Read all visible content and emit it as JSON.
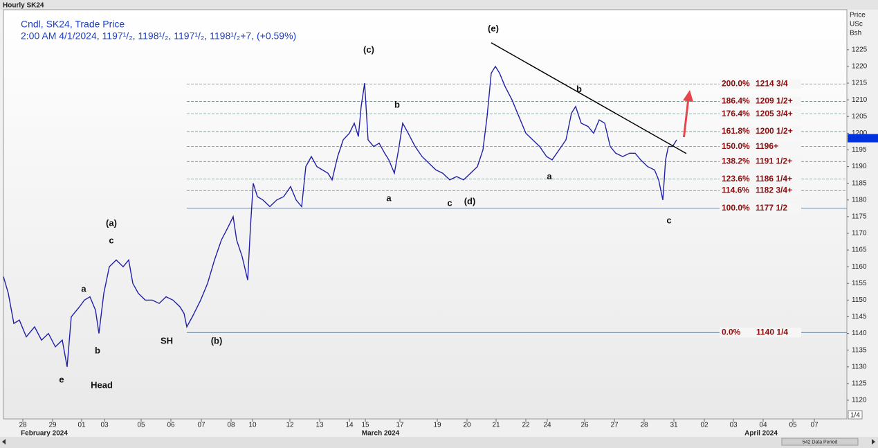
{
  "chart_data": {
    "type": "line",
    "header": "Hourly SK24",
    "legend_title": "Cndl, SK24, Trade Price",
    "legend_detail": "2:00 AM 4/1/2024, 1197¹/₂, 1198¹/₂, 1197¹/₂, 1198¹/₂+7, (+0.59%)",
    "y_axis_label": [
      "Price",
      "USc",
      "Bsh"
    ],
    "series": [
      {
        "name": "SK24",
        "color": "#1f1fa8",
        "x": [
          1,
          2.4,
          4,
          5.6,
          7.6,
          10,
          12,
          14,
          16,
          18,
          19.4,
          20.6,
          23,
          24.4,
          26,
          27.6,
          28.6,
          30,
          31.6,
          33.6,
          35.6,
          37.2,
          38.4,
          40,
          42,
          44,
          46,
          48,
          50,
          52,
          53.2,
          54,
          55.6,
          58,
          60,
          62,
          64,
          66,
          67.4,
          68.4,
          70,
          71.6,
          72.4,
          73.2,
          74.4,
          76,
          78,
          80,
          82,
          84,
          85.6,
          87.2,
          88.4,
          90,
          91.6,
          93.2,
          94.8,
          96,
          97.6,
          99.2,
          101,
          102.4,
          103.6,
          104.4,
          105.4,
          106.4,
          108,
          109.6,
          111.2,
          112.4,
          114,
          115.2,
          116.4,
          118,
          120,
          122,
          124,
          126,
          128,
          130,
          132,
          134,
          136,
          138,
          139.6,
          140.8,
          142,
          143.2,
          144.4,
          146,
          148,
          150,
          152,
          154,
          156,
          158,
          159.6,
          161.6,
          163.6,
          165.2,
          166.4,
          168,
          170,
          171.6,
          173.2,
          174.8,
          176.4,
          178,
          180,
          182,
          183.6,
          185.2,
          187.2,
          189.2,
          190.4,
          191.6,
          192.4,
          193.2,
          194.4,
          195.6
        ],
        "values": [
          1157,
          1152,
          1143,
          1144,
          1139,
          1142,
          1138,
          1140,
          1136,
          1138,
          1130,
          1145,
          1148,
          1150,
          1151,
          1147,
          1140,
          1152,
          1160,
          1162,
          1160,
          1162,
          1155,
          1152,
          1150,
          1150,
          1149,
          1151,
          1150,
          1148,
          1146,
          1142,
          1145,
          1150,
          1155,
          1162,
          1168,
          1172,
          1175,
          1168,
          1163,
          1156,
          1172,
          1185,
          1181,
          1180,
          1178,
          1180,
          1181,
          1184,
          1180,
          1178,
          1190,
          1193,
          1190,
          1189,
          1188,
          1186,
          1193,
          1198,
          1200,
          1203,
          1199,
          1208,
          1215,
          1198,
          1196,
          1197,
          1194,
          1192,
          1188,
          1195,
          1203,
          1200,
          1196,
          1193,
          1191,
          1189,
          1188,
          1186,
          1187,
          1186,
          1188,
          1190,
          1195,
          1205,
          1218,
          1220,
          1218,
          1214,
          1210,
          1205,
          1200,
          1198,
          1196,
          1193,
          1192,
          1195,
          1198,
          1206,
          1208,
          1203,
          1202,
          1200,
          1204,
          1203,
          1196,
          1194,
          1193,
          1194,
          1194,
          1192,
          1190,
          1189,
          1186,
          1180,
          1192,
          1196,
          1196,
          1198
        ]
      }
    ],
    "last_price": 1198.5,
    "ylim": [
      1114.4,
      1237
    ],
    "yticks": [
      1120,
      1125,
      1130,
      1135,
      1140,
      1145,
      1150,
      1155,
      1160,
      1165,
      1170,
      1175,
      1180,
      1185,
      1190,
      1195,
      1200,
      1205,
      1210,
      1215,
      1220,
      1225
    ],
    "xlim": [
      1,
      244.8
    ],
    "xticks": [
      {
        "value": 6.6,
        "label": "28"
      },
      {
        "value": 15.2,
        "label": "29"
      },
      {
        "value": 23.6,
        "label": "01"
      },
      {
        "value": 30.2,
        "label": "03"
      },
      {
        "value": 40.8,
        "label": "05"
      },
      {
        "value": 49.4,
        "label": "06"
      },
      {
        "value": 58.2,
        "label": "07"
      },
      {
        "value": 66.8,
        "label": "08"
      },
      {
        "value": 73,
        "label": "10"
      },
      {
        "value": 83.8,
        "label": "12"
      },
      {
        "value": 92.4,
        "label": "13"
      },
      {
        "value": 101,
        "label": "14"
      },
      {
        "value": 105.6,
        "label": "15"
      },
      {
        "value": 115.6,
        "label": "17"
      },
      {
        "value": 126.4,
        "label": "19"
      },
      {
        "value": 135,
        "label": "20"
      },
      {
        "value": 143.4,
        "label": "21"
      },
      {
        "value": 152,
        "label": "22"
      },
      {
        "value": 158.2,
        "label": "24"
      },
      {
        "value": 169,
        "label": "26"
      },
      {
        "value": 177.6,
        "label": "27"
      },
      {
        "value": 186.2,
        "label": "28"
      },
      {
        "value": 194.8,
        "label": "31"
      },
      {
        "value": 203.6,
        "label": "02"
      },
      {
        "value": 212,
        "label": "03"
      },
      {
        "value": 220.6,
        "label": "04"
      },
      {
        "value": 229.2,
        "label": "05"
      },
      {
        "value": 235.4,
        "label": "07"
      }
    ],
    "months": [
      {
        "value": 12.8,
        "label": "February 2024"
      },
      {
        "value": 110,
        "label": "March 2024"
      },
      {
        "value": 220,
        "label": "April 2024"
      }
    ],
    "fib_start_x": 54,
    "fib_levels": [
      {
        "pct": "200.0%",
        "price": "1214 3/4",
        "value": 1214.75
      },
      {
        "pct": "186.4%",
        "price": "1209 1/2+",
        "value": 1209.5
      },
      {
        "pct": "176.4%",
        "price": "1205 3/4+",
        "value": 1205.75
      },
      {
        "pct": "161.8%",
        "price": "1200 1/2+",
        "value": 1200.5
      },
      {
        "pct": "150.0%",
        "price": "1196+",
        "value": 1196
      },
      {
        "pct": "138.2%",
        "price": "1191 1/2+",
        "value": 1191.5
      },
      {
        "pct": "123.6%",
        "price": "1186 1/4+",
        "value": 1186.25
      },
      {
        "pct": "114.6%",
        "price": "1182 3/4+",
        "value": 1182.75
      },
      {
        "pct": "100.0%",
        "price": "1177 1/2",
        "value": 1177.5
      },
      {
        "pct": "0.0%",
        "price": "1140 1/4",
        "value": 1140.25
      }
    ],
    "trendline": {
      "x": [
        142,
        198.4
      ],
      "values": [
        1227.1,
        1193.9
      ]
    },
    "annotations": [
      {
        "text": "(e)",
        "x": 142.6,
        "y": 1231.2
      },
      {
        "text": "(c)",
        "x": 106.6,
        "y": 1224.8
      },
      {
        "text": "b",
        "x": 114.8,
        "y": 1208.4
      },
      {
        "text": "b",
        "x": 167.4,
        "y": 1213
      },
      {
        "text": "a",
        "x": 112.4,
        "y": 1180.4
      },
      {
        "text": "c",
        "x": 130,
        "y": 1178.9
      },
      {
        "text": "(d)",
        "x": 135.8,
        "y": 1179.4
      },
      {
        "text": "a",
        "x": 158.8,
        "y": 1186.9
      },
      {
        "text": "c",
        "x": 193.4,
        "y": 1173.7
      },
      {
        "text": "(a)",
        "x": 32.2,
        "y": 1172.9
      },
      {
        "text": "c",
        "x": 32.2,
        "y": 1167.7
      },
      {
        "text": "a",
        "x": 24.2,
        "y": 1153.2
      },
      {
        "text": "b",
        "x": 28.2,
        "y": 1134.7
      },
      {
        "text": "e",
        "x": 17.8,
        "y": 1126
      },
      {
        "text": "Head",
        "x": 29.4,
        "y": 1124.3
      },
      {
        "text": "SH",
        "x": 48.2,
        "y": 1137.6
      },
      {
        "text": "(b)",
        "x": 62.6,
        "y": 1137.6
      }
    ],
    "page_indicator": "1/4",
    "scroll_label": "542 Data Period"
  }
}
